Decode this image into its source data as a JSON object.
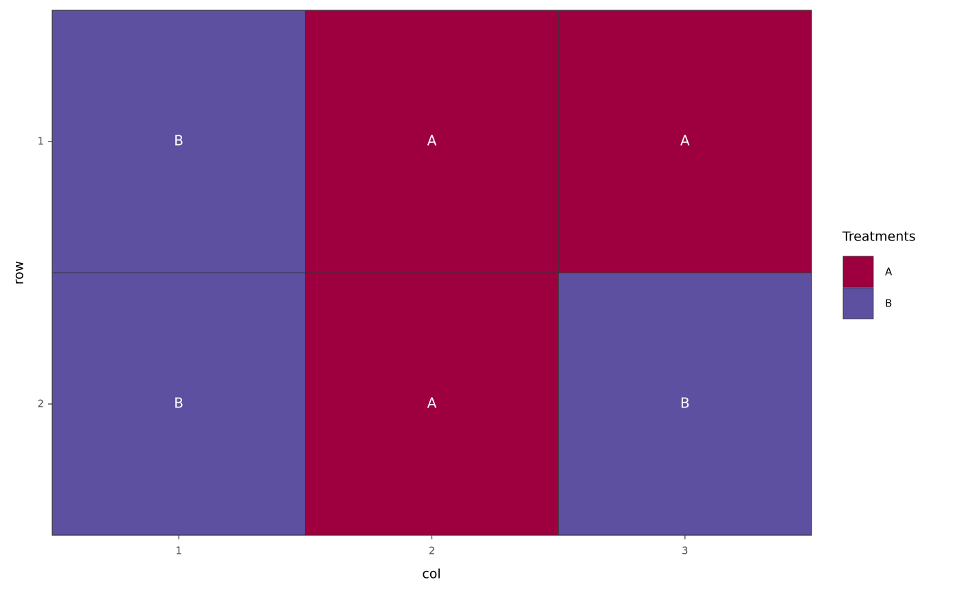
{
  "chart_data": {
    "type": "tile",
    "x_label": "col",
    "y_label": "row",
    "xlim": [
      0.5,
      3.5
    ],
    "xticks": [
      1,
      2,
      3
    ],
    "ylim": [
      0.5,
      2.5
    ],
    "yticks": [
      1,
      2
    ],
    "y_reversed": true,
    "cells": [
      {
        "col": 1,
        "row": 1,
        "treatment": "B"
      },
      {
        "col": 2,
        "row": 1,
        "treatment": "A"
      },
      {
        "col": 3,
        "row": 1,
        "treatment": "A"
      },
      {
        "col": 1,
        "row": 2,
        "treatment": "B"
      },
      {
        "col": 2,
        "row": 2,
        "treatment": "A"
      },
      {
        "col": 3,
        "row": 2,
        "treatment": "B"
      }
    ],
    "legend": {
      "title": "Treatments",
      "entries": [
        {
          "name": "A",
          "color": "#9e003f"
        },
        {
          "name": "B",
          "color": "#5e50a1"
        }
      ]
    }
  }
}
